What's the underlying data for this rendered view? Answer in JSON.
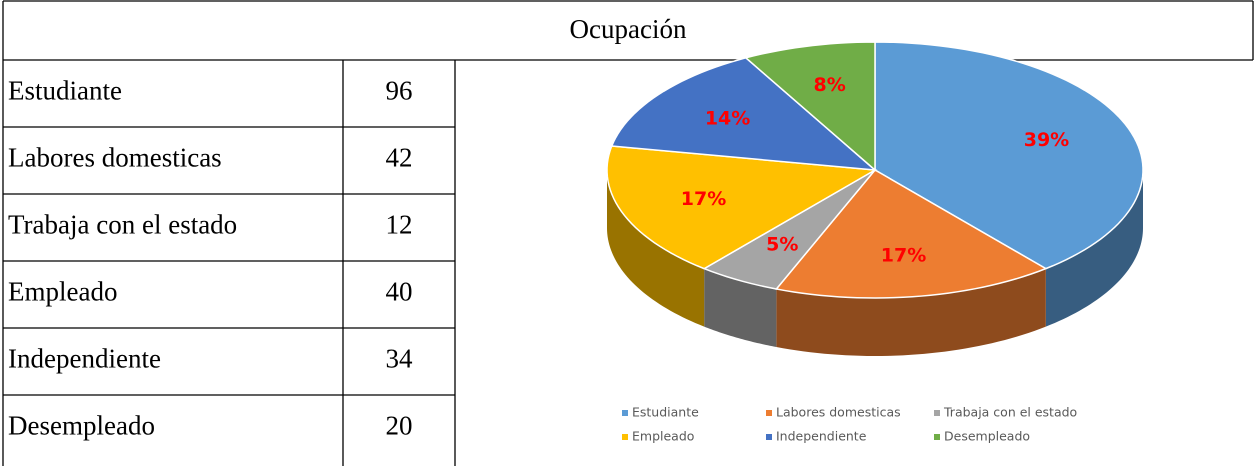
{
  "table": {
    "title": "Ocupación",
    "rows": [
      [
        "Estudiante",
        96
      ],
      [
        "Labores domesticas",
        42
      ],
      [
        "Trabaja con el estado",
        12
      ],
      [
        "Empleado",
        40
      ],
      [
        "Independiente",
        34
      ],
      [
        "Desempleado",
        20
      ]
    ]
  },
  "chart_data": {
    "type": "pie",
    "categories": [
      "Estudiante",
      "Labores domesticas",
      "Trabaja con el estado",
      "Empleado",
      "Independiente",
      "Desempleado"
    ],
    "values": [
      39,
      17,
      5,
      17,
      14,
      8
    ],
    "value_labels": [
      "39%",
      "17%",
      "5%",
      "17%",
      "14%",
      "8%"
    ],
    "colors": [
      "#5b9bd5",
      "#ed7d31",
      "#a5a5a5",
      "#ffc000",
      "#4472c4",
      "#70ad47"
    ],
    "legend": "bottom"
  }
}
